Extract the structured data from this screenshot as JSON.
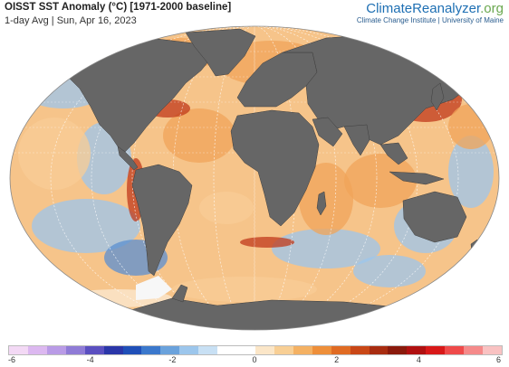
{
  "header": {
    "title": "OISST SST Anomaly (°C) [1971-2000 baseline]",
    "subtitle": "1-day Avg | Sun, Apr 16, 2023"
  },
  "brand": {
    "name_part1": "ClimateReanalyzer",
    "name_part2": ".org",
    "credit": "Climate Change Institute | University of Maine"
  },
  "colorbar": {
    "ticks": [
      "-6",
      "-4",
      "-2",
      "0",
      "2",
      "4",
      "6"
    ],
    "colors": [
      "#f3d9f5",
      "#dcb8f0",
      "#b99be6",
      "#8f7bd6",
      "#5a4fc0",
      "#2a36a8",
      "#1f4fb8",
      "#3b78cc",
      "#6aa2dc",
      "#9cc6ec",
      "#c8e0f4",
      "#ffffff",
      "#ffffff",
      "#fbe6c8",
      "#f8cf95",
      "#f4b163",
      "#ee8f3a",
      "#e06b23",
      "#c94716",
      "#a82c10",
      "#8a1a0c",
      "#b01010",
      "#d81818",
      "#ef4a4a",
      "#f58a8a",
      "#f9c2c2"
    ]
  },
  "map": {
    "land_color": "#666666",
    "ice_color": "#f7f7f7",
    "grid_color": "#ffffff",
    "anomaly_colors": {
      "warm": "#f0a45a",
      "warm_light": "#f8cc96",
      "hot": "#c0391b",
      "cool": "#9cc6ec",
      "cool_deep": "#5b8fd0",
      "neutral": "#fbe9d2"
    }
  }
}
